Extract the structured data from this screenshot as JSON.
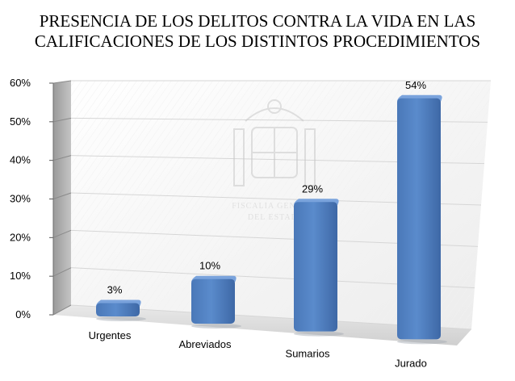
{
  "chart_data": {
    "type": "bar",
    "title": "PRESENCIA DE LOS DELITOS CONTRA LA VIDA EN LAS CALIFICACIONES DE LOS DISTINTOS PROCEDIMIENTOS",
    "title_lines": [
      "PRESENCIA DE LOS DELITOS CONTRA LA VIDA EN LAS",
      "CALIFICACIONES DE LOS DISTINTOS PROCEDIMIENTOS"
    ],
    "categories": [
      "Urgentes",
      "Abreviados",
      "Sumarios",
      "Jurado"
    ],
    "values": [
      3,
      10,
      29,
      54
    ],
    "data_labels": [
      "3%",
      "10%",
      "29%",
      "54%"
    ],
    "y_ticks": [
      "0%",
      "10%",
      "20%",
      "30%",
      "40%",
      "50%",
      "60%"
    ],
    "ylim": [
      0,
      60
    ],
    "xlabel": "",
    "ylabel": "",
    "grid": true,
    "legend": "none",
    "bar_color": "#4f7fc0",
    "watermark": {
      "lines": [
        "FISCALIA GENERAL",
        "DEL ESTADO"
      ],
      "icon": "coat-of-arms-icon"
    }
  }
}
